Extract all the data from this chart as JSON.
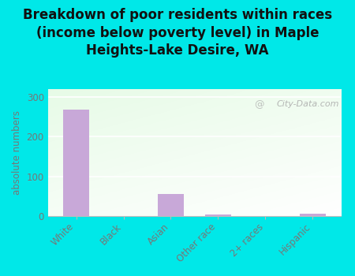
{
  "title": "Breakdown of poor residents within races\n(income below poverty level) in Maple\nHeights-Lake Desire, WA",
  "categories": [
    "White",
    "Black",
    "Asian",
    "Other race",
    "2+ races",
    "Hispanic"
  ],
  "values": [
    268,
    0,
    55,
    4,
    0,
    7
  ],
  "bar_color": "#c8a8d8",
  "ylabel": "absolute numbers",
  "ylim": [
    0,
    320
  ],
  "yticks": [
    0,
    100,
    200,
    300
  ],
  "background_color": "#00e8e8",
  "watermark_text": "City-Data.com",
  "title_fontsize": 12,
  "title_color": "#111111",
  "axis_text_color": "#777777",
  "grid_color": "#dddddd"
}
